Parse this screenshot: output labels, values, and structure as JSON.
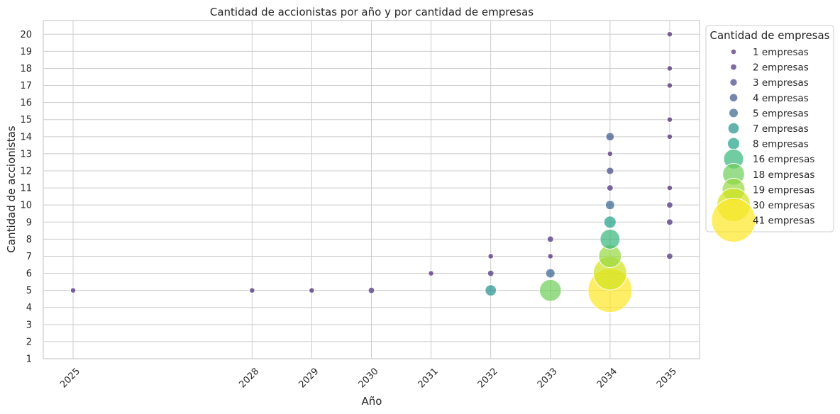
{
  "chart_data": {
    "type": "scatter",
    "title": "Cantidad de accionistas por año y por cantidad de empresas",
    "xlabel": "Año",
    "ylabel": "Cantidad de accionistas",
    "x_ticks": [
      "2025",
      "2028",
      "2029",
      "2030",
      "2031",
      "2032",
      "2033",
      "2034",
      "2035"
    ],
    "y_ticks": [
      1,
      2,
      3,
      4,
      5,
      6,
      7,
      8,
      9,
      10,
      11,
      12,
      13,
      14,
      15,
      16,
      17,
      18,
      19,
      20
    ],
    "xlim": [
      2024.5,
      2035.5
    ],
    "ylim": [
      1,
      20.8
    ],
    "grid": true,
    "size_encoding": "Cantidad de empresas",
    "legend": {
      "title": "Cantidad de empresas",
      "placement": "outside-right-top",
      "entries": [
        {
          "label": "1 empresas",
          "value": 1
        },
        {
          "label": "2 empresas",
          "value": 2
        },
        {
          "label": "3 empresas",
          "value": 3
        },
        {
          "label": "4 empresas",
          "value": 4
        },
        {
          "label": "5 empresas",
          "value": 5
        },
        {
          "label": "7 empresas",
          "value": 7
        },
        {
          "label": "8 empresas",
          "value": 8
        },
        {
          "label": "16 empresas",
          "value": 16
        },
        {
          "label": "18 empresas",
          "value": 18
        },
        {
          "label": "19 empresas",
          "value": 19
        },
        {
          "label": "30 empresas",
          "value": 30
        },
        {
          "label": "41 empresas",
          "value": 41
        }
      ]
    },
    "colormap": {
      "1": "#482475",
      "2": "#472d7b",
      "3": "#414487",
      "4": "#3b528b",
      "5": "#33638d",
      "7": "#21918c",
      "8": "#1fa187",
      "16": "#35b779",
      "18": "#6ece58",
      "19": "#95d840",
      "30": "#d2e21b",
      "41": "#fde725"
    },
    "points": [
      {
        "x": 2025,
        "y": 5,
        "empresas": 1
      },
      {
        "x": 2028,
        "y": 5,
        "empresas": 1
      },
      {
        "x": 2029,
        "y": 5,
        "empresas": 1
      },
      {
        "x": 2030,
        "y": 5,
        "empresas": 2
      },
      {
        "x": 2031,
        "y": 6,
        "empresas": 1
      },
      {
        "x": 2032,
        "y": 5,
        "empresas": 7
      },
      {
        "x": 2032,
        "y": 6,
        "empresas": 2
      },
      {
        "x": 2032,
        "y": 7,
        "empresas": 1
      },
      {
        "x": 2033,
        "y": 5,
        "empresas": 18
      },
      {
        "x": 2033,
        "y": 6,
        "empresas": 5
      },
      {
        "x": 2033,
        "y": 7,
        "empresas": 1
      },
      {
        "x": 2033,
        "y": 8,
        "empresas": 2
      },
      {
        "x": 2034,
        "y": 5,
        "empresas": 41
      },
      {
        "x": 2034,
        "y": 6,
        "empresas": 30
      },
      {
        "x": 2034,
        "y": 7,
        "empresas": 19
      },
      {
        "x": 2034,
        "y": 8,
        "empresas": 16
      },
      {
        "x": 2034,
        "y": 9,
        "empresas": 8
      },
      {
        "x": 2034,
        "y": 10,
        "empresas": 5
      },
      {
        "x": 2034,
        "y": 11,
        "empresas": 2
      },
      {
        "x": 2034,
        "y": 12,
        "empresas": 3
      },
      {
        "x": 2034,
        "y": 13,
        "empresas": 1
      },
      {
        "x": 2034,
        "y": 14,
        "empresas": 4
      },
      {
        "x": 2035,
        "y": 7,
        "empresas": 2
      },
      {
        "x": 2035,
        "y": 9,
        "empresas": 2
      },
      {
        "x": 2035,
        "y": 10,
        "empresas": 2
      },
      {
        "x": 2035,
        "y": 11,
        "empresas": 1
      },
      {
        "x": 2035,
        "y": 14,
        "empresas": 1
      },
      {
        "x": 2035,
        "y": 15,
        "empresas": 1
      },
      {
        "x": 2035,
        "y": 17,
        "empresas": 1
      },
      {
        "x": 2035,
        "y": 18,
        "empresas": 1
      },
      {
        "x": 2035,
        "y": 20,
        "empresas": 1
      }
    ]
  }
}
